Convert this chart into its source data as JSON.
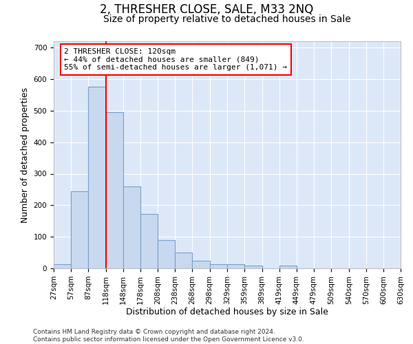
{
  "title": "2, THRESHER CLOSE, SALE, M33 2NQ",
  "subtitle": "Size of property relative to detached houses in Sale",
  "xlabel": "Distribution of detached houses by size in Sale",
  "ylabel": "Number of detached properties",
  "bar_values": [
    13,
    245,
    575,
    495,
    260,
    172,
    90,
    50,
    25,
    13,
    13,
    8,
    0,
    8,
    0,
    0,
    0,
    0,
    0,
    0
  ],
  "bin_edges": [
    27,
    57,
    87,
    118,
    148,
    178,
    208,
    238,
    268,
    298,
    329,
    359,
    389,
    419,
    449,
    479,
    509,
    540,
    570,
    600,
    630
  ],
  "bin_labels": [
    "27sqm",
    "57sqm",
    "87sqm",
    "118sqm",
    "148sqm",
    "178sqm",
    "208sqm",
    "238sqm",
    "268sqm",
    "298sqm",
    "329sqm",
    "359sqm",
    "389sqm",
    "419sqm",
    "449sqm",
    "479sqm",
    "509sqm",
    "540sqm",
    "570sqm",
    "600sqm",
    "630sqm"
  ],
  "bar_color": "#c8d8ee",
  "bar_edge_color": "#7aa0cc",
  "red_line_x": 118,
  "annotation_box_text": "2 THRESHER CLOSE: 120sqm\n← 44% of detached houses are smaller (849)\n55% of semi-detached houses are larger (1,071) →",
  "ylim": [
    0,
    720
  ],
  "yticks": [
    0,
    100,
    200,
    300,
    400,
    500,
    600,
    700
  ],
  "background_color": "#dce8f8",
  "grid_color": "#ffffff",
  "footer_text": "Contains HM Land Registry data © Crown copyright and database right 2024.\nContains public sector information licensed under the Open Government Licence v3.0.",
  "title_fontsize": 12,
  "subtitle_fontsize": 10,
  "axis_label_fontsize": 9,
  "tick_fontsize": 7.5,
  "annotation_fontsize": 8,
  "footer_fontsize": 6.5
}
